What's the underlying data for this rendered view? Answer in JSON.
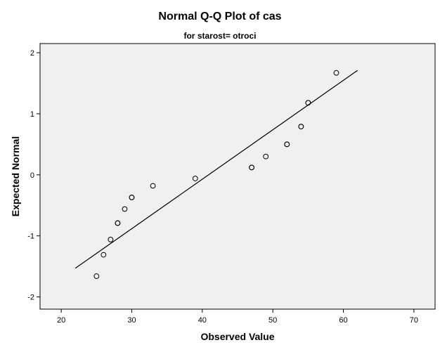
{
  "chart_data": {
    "type": "scatter",
    "title": "Normal Q-Q Plot of cas",
    "subtitle": "for starost= otroci",
    "xlabel": "Observed Value",
    "ylabel": "Expected Normal",
    "xlim": [
      17,
      73
    ],
    "ylim": [
      -2.2,
      2.15
    ],
    "xticks": [
      20,
      30,
      40,
      50,
      60,
      70
    ],
    "yticks": [
      -2,
      -1,
      0,
      1,
      2
    ],
    "grid": false,
    "colors": {
      "plot_background": "#f0f0f0",
      "marker": "#000000",
      "line": "#000000"
    },
    "points": [
      {
        "x": 25,
        "y": -1.66
      },
      {
        "x": 26,
        "y": -1.31
      },
      {
        "x": 27,
        "y": -1.06
      },
      {
        "x": 28,
        "y": -0.79
      },
      {
        "x": 28,
        "y": -0.79
      },
      {
        "x": 29,
        "y": -0.56
      },
      {
        "x": 30,
        "y": -0.37
      },
      {
        "x": 30,
        "y": -0.37
      },
      {
        "x": 33,
        "y": -0.18
      },
      {
        "x": 39,
        "y": -0.06
      },
      {
        "x": 47,
        "y": 0.12
      },
      {
        "x": 47,
        "y": 0.12
      },
      {
        "x": 49,
        "y": 0.3
      },
      {
        "x": 52,
        "y": 0.5
      },
      {
        "x": 52,
        "y": 0.5
      },
      {
        "x": 54,
        "y": 0.79
      },
      {
        "x": 54,
        "y": 0.79
      },
      {
        "x": 55,
        "y": 1.18
      },
      {
        "x": 55,
        "y": 1.18
      },
      {
        "x": 59,
        "y": 1.67
      }
    ],
    "reference_line": {
      "x": [
        22,
        62
      ],
      "y": [
        -1.53,
        1.71
      ]
    }
  }
}
